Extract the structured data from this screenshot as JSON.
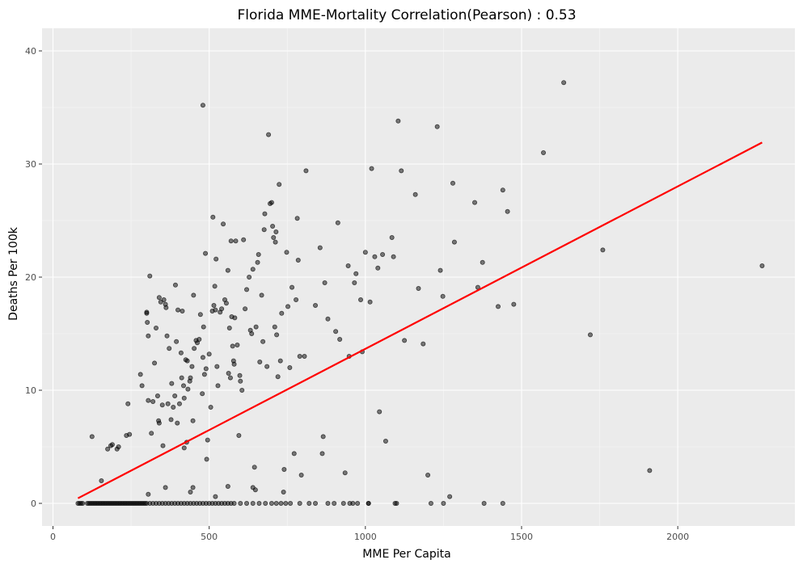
{
  "chart_data": {
    "type": "scatter",
    "title": "Florida MME-Mortality Correlation(Pearson) : 0.53",
    "xlabel": "MME Per Capita",
    "ylabel": "Deaths Per 100k",
    "xlim": [
      -35,
      2375
    ],
    "ylim": [
      -2,
      42
    ],
    "xticks": [
      0,
      500,
      1000,
      1500,
      2000
    ],
    "yticks": [
      0,
      10,
      20,
      30,
      40
    ],
    "grid": true,
    "colors": {
      "panel": "#ebebeb",
      "grid_major": "#ffffff",
      "point": "#000000",
      "fit_line": "#ff0000"
    },
    "fit_line": {
      "x": [
        80,
        2270
      ],
      "y": [
        0.45,
        31.9
      ]
    },
    "points": [
      [
        125,
        5.9
      ],
      [
        155,
        2.0
      ],
      [
        175,
        4.8
      ],
      [
        185,
        5.1
      ],
      [
        190,
        5.2
      ],
      [
        205,
        4.8
      ],
      [
        210,
        5.0
      ],
      [
        235,
        6.0
      ],
      [
        240,
        8.8
      ],
      [
        245,
        6.1
      ],
      [
        280,
        11.4
      ],
      [
        285,
        10.4
      ],
      [
        300,
        16.8
      ],
      [
        300,
        16.9
      ],
      [
        302,
        16.0
      ],
      [
        305,
        14.8
      ],
      [
        305,
        9.1
      ],
      [
        310,
        20.1
      ],
      [
        315,
        6.2
      ],
      [
        320,
        9.0
      ],
      [
        325,
        12.4
      ],
      [
        330,
        15.5
      ],
      [
        335,
        9.5
      ],
      [
        338,
        7.3
      ],
      [
        340,
        7.1
      ],
      [
        340,
        18.2
      ],
      [
        345,
        17.8
      ],
      [
        350,
        8.7
      ],
      [
        352,
        5.1
      ],
      [
        355,
        18.0
      ],
      [
        360,
        17.6
      ],
      [
        362,
        17.3
      ],
      [
        365,
        14.8
      ],
      [
        368,
        8.8
      ],
      [
        372,
        13.7
      ],
      [
        378,
        7.4
      ],
      [
        380,
        10.6
      ],
      [
        385,
        8.5
      ],
      [
        390,
        9.5
      ],
      [
        392,
        19.3
      ],
      [
        395,
        14.3
      ],
      [
        398,
        7.1
      ],
      [
        400,
        17.1
      ],
      [
        405,
        8.8
      ],
      [
        410,
        13.3
      ],
      [
        412,
        11.1
      ],
      [
        414,
        17.0
      ],
      [
        418,
        10.4
      ],
      [
        420,
        9.3
      ],
      [
        425,
        12.7
      ],
      [
        428,
        5.4
      ],
      [
        430,
        12.6
      ],
      [
        432,
        10.1
      ],
      [
        438,
        10.8
      ],
      [
        440,
        11.1
      ],
      [
        445,
        12.1
      ],
      [
        448,
        7.3
      ],
      [
        450,
        18.4
      ],
      [
        452,
        13.7
      ],
      [
        458,
        14.4
      ],
      [
        462,
        14.2
      ],
      [
        468,
        14.5
      ],
      [
        472,
        16.7
      ],
      [
        478,
        9.7
      ],
      [
        480,
        12.9
      ],
      [
        482,
        15.6
      ],
      [
        485,
        11.4
      ],
      [
        488,
        22.1
      ],
      [
        490,
        11.9
      ],
      [
        492,
        3.9
      ],
      [
        495,
        5.6
      ],
      [
        500,
        13.2
      ],
      [
        505,
        8.5
      ],
      [
        510,
        17.0
      ],
      [
        512,
        25.3
      ],
      [
        515,
        17.5
      ],
      [
        518,
        19.2
      ],
      [
        520,
        17.1
      ],
      [
        522,
        21.6
      ],
      [
        525,
        12.1
      ],
      [
        528,
        10.4
      ],
      [
        535,
        16.9
      ],
      [
        540,
        17.2
      ],
      [
        545,
        24.7
      ],
      [
        550,
        18.0
      ],
      [
        555,
        17.7
      ],
      [
        560,
        20.6
      ],
      [
        562,
        11.5
      ],
      [
        565,
        15.5
      ],
      [
        568,
        11.1
      ],
      [
        570,
        23.2
      ],
      [
        572,
        16.5
      ],
      [
        575,
        13.9
      ],
      [
        578,
        12.6
      ],
      [
        580,
        12.3
      ],
      [
        582,
        16.4
      ],
      [
        585,
        23.2
      ],
      [
        590,
        14.0
      ],
      [
        595,
        6.0
      ],
      [
        598,
        11.3
      ],
      [
        600,
        10.8
      ],
      [
        605,
        10.0
      ],
      [
        610,
        23.3
      ],
      [
        615,
        17.2
      ],
      [
        620,
        18.9
      ],
      [
        628,
        20.0
      ],
      [
        632,
        15.3
      ],
      [
        636,
        15.0
      ],
      [
        640,
        20.7
      ],
      [
        645,
        3.2
      ],
      [
        650,
        15.6
      ],
      [
        655,
        21.3
      ],
      [
        658,
        22.0
      ],
      [
        662,
        12.5
      ],
      [
        668,
        18.4
      ],
      [
        672,
        14.3
      ],
      [
        676,
        24.2
      ],
      [
        678,
        25.6
      ],
      [
        685,
        12.1
      ],
      [
        690,
        32.6
      ],
      [
        695,
        26.5
      ],
      [
        700,
        26.6
      ],
      [
        703,
        24.5
      ],
      [
        706,
        23.5
      ],
      [
        710,
        15.6
      ],
      [
        712,
        23.1
      ],
      [
        714,
        24.0
      ],
      [
        716,
        14.9
      ],
      [
        720,
        11.2
      ],
      [
        724,
        28.2
      ],
      [
        728,
        12.6
      ],
      [
        732,
        16.8
      ],
      [
        738,
        1.0
      ],
      [
        748,
        22.2
      ],
      [
        752,
        17.4
      ],
      [
        758,
        12.0
      ],
      [
        765,
        19.1
      ],
      [
        772,
        4.4
      ],
      [
        778,
        18.0
      ],
      [
        782,
        25.2
      ],
      [
        785,
        21.5
      ],
      [
        790,
        13.0
      ],
      [
        795,
        2.5
      ],
      [
        805,
        13.0
      ],
      [
        810,
        29.4
      ],
      [
        840,
        17.5
      ],
      [
        855,
        22.6
      ],
      [
        862,
        4.4
      ],
      [
        865,
        5.9
      ],
      [
        870,
        19.5
      ],
      [
        880,
        16.3
      ],
      [
        905,
        15.2
      ],
      [
        912,
        24.8
      ],
      [
        918,
        14.5
      ],
      [
        935,
        2.7
      ],
      [
        945,
        21.0
      ],
      [
        948,
        13.0
      ],
      [
        965,
        19.5
      ],
      [
        970,
        20.3
      ],
      [
        985,
        18.0
      ],
      [
        990,
        13.4
      ],
      [
        1000,
        22.2
      ],
      [
        1015,
        17.8
      ],
      [
        1020,
        29.6
      ],
      [
        1030,
        21.8
      ],
      [
        1040,
        20.8
      ],
      [
        1045,
        8.1
      ],
      [
        1055,
        22.0
      ],
      [
        1065,
        5.5
      ],
      [
        1085,
        23.5
      ],
      [
        1090,
        21.8
      ],
      [
        1105,
        33.8
      ],
      [
        1115,
        29.4
      ],
      [
        1125,
        14.4
      ],
      [
        1160,
        27.3
      ],
      [
        1170,
        19.0
      ],
      [
        1185,
        14.1
      ],
      [
        1200,
        2.5
      ],
      [
        1230,
        33.3
      ],
      [
        1240,
        20.6
      ],
      [
        1248,
        18.3
      ],
      [
        1270,
        0.6
      ],
      [
        1280,
        28.3
      ],
      [
        1285,
        23.1
      ],
      [
        1350,
        26.6
      ],
      [
        1360,
        19.1
      ],
      [
        1375,
        21.3
      ],
      [
        1425,
        17.4
      ],
      [
        1440,
        27.7
      ],
      [
        1455,
        25.8
      ],
      [
        1475,
        17.6
      ],
      [
        1570,
        31.0
      ],
      [
        1635,
        37.2
      ],
      [
        1720,
        14.9
      ],
      [
        1760,
        22.4
      ],
      [
        1910,
        2.9
      ],
      [
        2270,
        21.0
      ],
      [
        480,
        35.2
      ],
      [
        360,
        1.4
      ],
      [
        420,
        4.9
      ],
      [
        440,
        1.0
      ],
      [
        448,
        1.4
      ],
      [
        560,
        1.5
      ],
      [
        640,
        1.4
      ],
      [
        648,
        1.2
      ],
      [
        740,
        3.0
      ],
      [
        520,
        0.6
      ],
      [
        305,
        0.8
      ],
      [
        1010,
        0.0
      ],
      [
        1100,
        0.0
      ],
      [
        80,
        0
      ],
      [
        85,
        0
      ],
      [
        90,
        0
      ],
      [
        95,
        0
      ],
      [
        110,
        0
      ],
      [
        115,
        0
      ],
      [
        120,
        0
      ],
      [
        125,
        0
      ],
      [
        130,
        0
      ],
      [
        135,
        0
      ],
      [
        140,
        0
      ],
      [
        145,
        0
      ],
      [
        150,
        0
      ],
      [
        155,
        0
      ],
      [
        160,
        0
      ],
      [
        165,
        0
      ],
      [
        170,
        0
      ],
      [
        175,
        0
      ],
      [
        180,
        0
      ],
      [
        185,
        0
      ],
      [
        190,
        0
      ],
      [
        195,
        0
      ],
      [
        200,
        0
      ],
      [
        205,
        0
      ],
      [
        210,
        0
      ],
      [
        215,
        0
      ],
      [
        220,
        0
      ],
      [
        225,
        0
      ],
      [
        230,
        0
      ],
      [
        235,
        0
      ],
      [
        240,
        0
      ],
      [
        245,
        0
      ],
      [
        250,
        0
      ],
      [
        255,
        0
      ],
      [
        260,
        0
      ],
      [
        265,
        0
      ],
      [
        270,
        0
      ],
      [
        275,
        0
      ],
      [
        280,
        0
      ],
      [
        285,
        0
      ],
      [
        290,
        0
      ],
      [
        295,
        0
      ],
      [
        300,
        0
      ],
      [
        310,
        0
      ],
      [
        320,
        0
      ],
      [
        330,
        0
      ],
      [
        340,
        0
      ],
      [
        350,
        0
      ],
      [
        360,
        0
      ],
      [
        370,
        0
      ],
      [
        380,
        0
      ],
      [
        390,
        0
      ],
      [
        400,
        0
      ],
      [
        410,
        0
      ],
      [
        420,
        0
      ],
      [
        430,
        0
      ],
      [
        440,
        0
      ],
      [
        450,
        0
      ],
      [
        460,
        0
      ],
      [
        470,
        0
      ],
      [
        480,
        0
      ],
      [
        490,
        0
      ],
      [
        500,
        0
      ],
      [
        510,
        0
      ],
      [
        520,
        0
      ],
      [
        530,
        0
      ],
      [
        540,
        0
      ],
      [
        550,
        0
      ],
      [
        560,
        0
      ],
      [
        570,
        0
      ],
      [
        580,
        0
      ],
      [
        600,
        0
      ],
      [
        620,
        0
      ],
      [
        640,
        0
      ],
      [
        660,
        0
      ],
      [
        680,
        0
      ],
      [
        700,
        0
      ],
      [
        715,
        0
      ],
      [
        730,
        0
      ],
      [
        745,
        0
      ],
      [
        760,
        0
      ],
      [
        790,
        0
      ],
      [
        820,
        0
      ],
      [
        840,
        0
      ],
      [
        880,
        0
      ],
      [
        900,
        0
      ],
      [
        930,
        0
      ],
      [
        950,
        0
      ],
      [
        960,
        0
      ],
      [
        975,
        0
      ],
      [
        1010,
        0
      ],
      [
        1095,
        0
      ],
      [
        1210,
        0
      ],
      [
        1250,
        0
      ],
      [
        1380,
        0
      ],
      [
        1440,
        0
      ]
    ]
  }
}
